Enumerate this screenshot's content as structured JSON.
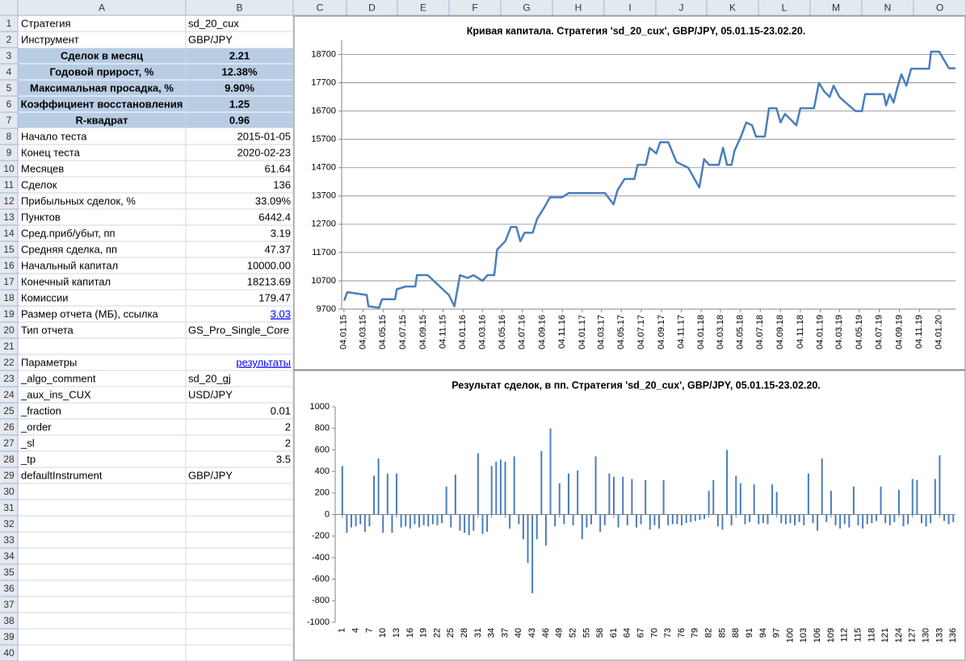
{
  "sheet": {
    "columns": [
      "A",
      "B",
      "C",
      "D",
      "E",
      "F",
      "G",
      "H",
      "I",
      "J",
      "K",
      "L",
      "M",
      "N",
      "O"
    ],
    "row_numbers": [
      1,
      2,
      3,
      4,
      5,
      6,
      7,
      8,
      9,
      10,
      11,
      12,
      13,
      14,
      15,
      16,
      17,
      18,
      19,
      20,
      21,
      22,
      23,
      24,
      25,
      26,
      27,
      28,
      29,
      30,
      31,
      32,
      33,
      34,
      35,
      36,
      37,
      38,
      39,
      40
    ],
    "rows": [
      [
        "Стратегия",
        "sd_20_cux"
      ],
      [
        "Инструмент",
        "GBP/JPY"
      ],
      [
        "Сделок в месяц",
        "2.21"
      ],
      [
        "Годовой прирост, %",
        "12.38%"
      ],
      [
        "Максимальная просадка, %",
        "9.90%"
      ],
      [
        "Коэффициент восстановления",
        "1.25"
      ],
      [
        "R-квадрат",
        "0.96"
      ],
      [
        "Начало теста",
        "2015-01-05"
      ],
      [
        "Конец теста",
        "2020-02-23"
      ],
      [
        "Месяцев",
        "61.64"
      ],
      [
        "Сделок",
        "136"
      ],
      [
        "Прибыльных сделок, %",
        "33.09%"
      ],
      [
        "Пунктов",
        "6442.4"
      ],
      [
        "Сред.приб/убыт, пп",
        "3.19"
      ],
      [
        "Средняя сделка, пп",
        "47.37"
      ],
      [
        "Начальный капитал",
        "10000.00"
      ],
      [
        "Конечный капитал",
        "18213.69"
      ],
      [
        "Комиссии",
        "179.47"
      ],
      [
        "Размер отчета (МБ), ссылка",
        "3.03"
      ],
      [
        "Тип отчета",
        "GS_Pro_Single_Core"
      ],
      null,
      [
        "Параметры",
        "результаты"
      ],
      [
        "_algo_comment",
        "sd_20_gj"
      ],
      [
        "_aux_ins_CUX",
        "USD/JPY"
      ],
      [
        "_fraction",
        "0.01"
      ],
      [
        "_order",
        "2"
      ],
      [
        "_sl",
        "2"
      ],
      [
        "_tp",
        "3.5"
      ],
      [
        "defaultInstrument",
        "GBP/JPY"
      ]
    ]
  },
  "chart_data": [
    {
      "type": "line",
      "title": "Кривая капитала. Стратегия 'sd_20_cux', GBP/JPY, 05.01.15-23.02.20.",
      "x": [
        "05.01.15",
        "14.01.15",
        "15.03.15",
        "20.03.15",
        "22.04.15",
        "01.05.15",
        "10.06.15",
        "15.06.15",
        "12.07.15",
        "11.08.15",
        "16.08.15",
        "18.09.15",
        "25.10.15",
        "22.11.15",
        "09.12.15",
        "26.12.15",
        "19.01.16",
        "05.02.16",
        "04.03.16",
        "20.03.16",
        "09.04.16",
        "18.04.16",
        "13.05.16",
        "30.05.16",
        "16.06.16",
        "28.06.16",
        "11.07.16",
        "05.08.16",
        "19.08.16",
        "10.09.16",
        "27.09.16",
        "03.11.16",
        "23.11.16",
        "15.03.17",
        "10.04.17",
        "22.04.17",
        "14.05.17",
        "13.06.17",
        "23.06.17",
        "18.07.17",
        "30.07.17",
        "19.08.17",
        "31.08.17",
        "25.09.17",
        "20.10.17",
        "25.11.17",
        "29.12.17",
        "13.01.18",
        "28.01.18",
        "27.02.18",
        "12.03.18",
        "24.03.18",
        "07.04.18",
        "16.04.18",
        "06.05.18",
        "22.05.18",
        "09.06.18",
        "21.06.18",
        "18.07.18",
        "31.07.18",
        "23.08.18",
        "04.09.18",
        "18.09.18",
        "23.10.18",
        "04.11.18",
        "16.12.18",
        "31.12.18",
        "16.01.19",
        "02.02.19",
        "14.02.19",
        "04.03.19",
        "23.03.19",
        "22.04.19",
        "12.05.19",
        "22.05.19",
        "18.07.19",
        "25.07.19",
        "05.08.19",
        "17.08.19",
        "28.08.19",
        "10.09.19",
        "25.09.19",
        "10.10.19",
        "04.12.19",
        "10.12.19",
        "04.01.20",
        "19.01.20",
        "03.02.20",
        "23.02.20"
      ],
      "values": [
        10000,
        10300,
        10200,
        9800,
        9750,
        10050,
        10050,
        10400,
        10500,
        10500,
        10900,
        10900,
        10500,
        10200,
        9800,
        10900,
        10800,
        10900,
        10700,
        10900,
        10900,
        11800,
        12100,
        12600,
        12600,
        12100,
        12400,
        12400,
        12900,
        13300,
        13650,
        13650,
        13800,
        13800,
        13400,
        13900,
        14300,
        14300,
        14800,
        14800,
        15400,
        15200,
        15600,
        15600,
        14900,
        14700,
        14000,
        15000,
        14800,
        14800,
        15400,
        14800,
        14800,
        15300,
        15800,
        16300,
        16200,
        15800,
        15800,
        16800,
        16800,
        16300,
        16600,
        16200,
        16800,
        16800,
        17700,
        17400,
        17200,
        17600,
        17200,
        17000,
        16700,
        16700,
        17300,
        17300,
        16900,
        17300,
        17000,
        17500,
        18000,
        17600,
        18200,
        18200,
        18800,
        18800,
        18500,
        18213.69,
        18213.69
      ],
      "color": "#4a7ebb",
      "xlim": [
        "28.12.14",
        "23.02.20"
      ],
      "xticks": [
        "04.01.15",
        "04.03.15",
        "04.05.15",
        "04.07.15",
        "04.09.15",
        "04.11.15",
        "04.01.16",
        "04.03.16",
        "04.05.16",
        "04.07.16",
        "04.09.16",
        "04.11.16",
        "04.01.17",
        "04.03.17",
        "04.05.17",
        "04.07.17",
        "04.09.17",
        "04.11.17",
        "04.01.18",
        "04.03.18",
        "04.05.18",
        "04.07.18",
        "04.09.18",
        "04.11.18",
        "04.01.19",
        "04.03.19",
        "04.05.19",
        "04.07.19",
        "04.09.19",
        "04.11.19",
        "04.01.20"
      ],
      "ylim": [
        9700,
        19200
      ],
      "yticks": [
        9700,
        10700,
        11700,
        12700,
        13700,
        14700,
        15700,
        16700,
        17700,
        18700
      ],
      "grid": true
    },
    {
      "type": "bar",
      "title": "Результат сделок, в пп. Стратегия 'sd_20_cux', GBP/JPY, 05.01.15-23.02.20.",
      "categories": [
        1,
        null,
        null,
        4,
        null,
        null,
        7,
        null,
        null,
        10,
        null,
        null,
        13,
        null,
        null,
        16,
        null,
        null,
        19,
        null,
        null,
        22,
        null,
        null,
        25,
        null,
        null,
        28,
        null,
        null,
        31,
        null,
        null,
        34,
        null,
        null,
        37,
        null,
        null,
        40,
        null,
        null,
        43,
        null,
        null,
        46,
        null,
        null,
        49,
        null,
        null,
        52,
        null,
        null,
        55,
        null,
        null,
        58,
        null,
        null,
        61,
        null,
        null,
        64,
        null,
        null,
        67,
        null,
        null,
        70,
        null,
        null,
        73,
        null,
        null,
        76,
        null,
        null,
        79,
        null,
        null,
        82,
        null,
        null,
        85,
        null,
        null,
        88,
        null,
        null,
        91,
        null,
        null,
        94,
        null,
        null,
        97,
        null,
        null,
        100,
        null,
        null,
        103,
        null,
        null,
        106,
        null,
        null,
        109,
        null,
        null,
        112,
        null,
        null,
        115,
        null,
        null,
        118,
        null,
        null,
        121,
        null,
        null,
        124,
        null,
        null,
        127,
        null,
        null,
        130,
        null,
        null,
        133,
        null,
        null,
        136
      ],
      "values": [
        450,
        -170,
        -120,
        -110,
        -90,
        -160,
        -110,
        360,
        520,
        -170,
        380,
        -170,
        380,
        -120,
        -110,
        -130,
        -90,
        -120,
        -100,
        -110,
        -90,
        -100,
        -80,
        260,
        -120,
        370,
        -150,
        -170,
        -190,
        -150,
        570,
        -180,
        -160,
        450,
        490,
        510,
        490,
        -130,
        540,
        -90,
        -230,
        -450,
        -730,
        -230,
        590,
        -290,
        800,
        -110,
        290,
        -90,
        380,
        -100,
        410,
        -230,
        -120,
        -90,
        540,
        -160,
        -100,
        380,
        350,
        -120,
        350,
        -100,
        330,
        -120,
        -90,
        320,
        -140,
        -100,
        -130,
        320,
        -100,
        -90,
        -90,
        -100,
        -80,
        -70,
        -60,
        -50,
        -40,
        220,
        320,
        -110,
        -140,
        600,
        -100,
        360,
        290,
        -90,
        -70,
        280,
        -90,
        -80,
        -90,
        280,
        210,
        -80,
        -90,
        -80,
        -100,
        -70,
        -100,
        380,
        -80,
        -150,
        520,
        -70,
        220,
        -100,
        -130,
        -90,
        -120,
        260,
        -100,
        -130,
        -90,
        -80,
        -60,
        260,
        -80,
        -100,
        -70,
        230,
        -110,
        -90,
        330,
        320,
        -80,
        -110,
        -80,
        330,
        550,
        -60,
        -90,
        -70
      ],
      "color": "#4a7ebb",
      "ylim": [
        -1000,
        1000
      ],
      "yticks": [
        -1000,
        -800,
        -600,
        -400,
        -200,
        0,
        200,
        400,
        600,
        800,
        1000
      ],
      "grid": false
    }
  ]
}
